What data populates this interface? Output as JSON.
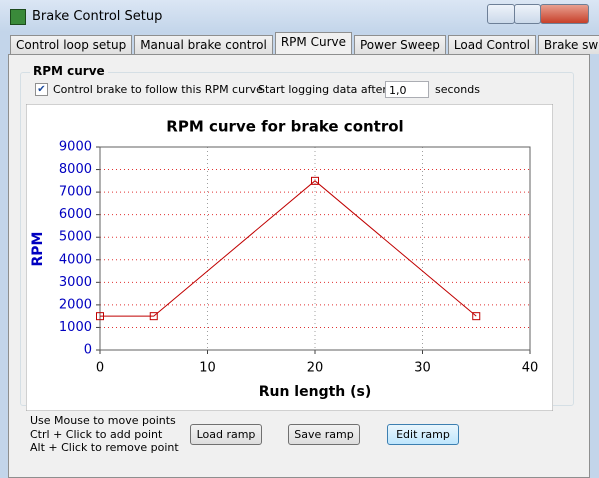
{
  "window": {
    "title": "Brake Control Setup"
  },
  "tabs": [
    "Control loop setup",
    "Manual brake control",
    "RPM Curve",
    "Power Sweep",
    "Load Control",
    "Brake sweep"
  ],
  "group": {
    "title": "RPM curve",
    "checkbox_label": "Control brake to follow this RPM curve",
    "checked": true,
    "logging_label": "Start logging data after:",
    "logging_value": "1,0",
    "logging_unit": "seconds"
  },
  "chart_data": {
    "type": "line",
    "title": "RPM curve for brake control",
    "x_label": "Run length (s)",
    "y_label": "RPM",
    "x": [
      0,
      5,
      20,
      35
    ],
    "values": [
      1500,
      1500,
      7500,
      1500
    ],
    "color": "#c00000",
    "xlim": [
      0,
      40
    ],
    "ylim": [
      0,
      9000
    ],
    "xticks": [
      0,
      10,
      20,
      30,
      40
    ],
    "yticks": [
      0,
      1000,
      2000,
      3000,
      4000,
      5000,
      6000,
      7000,
      8000,
      9000
    ],
    "grid": true
  },
  "help": [
    "Use Mouse to move points",
    "Ctrl + Click to add point",
    "Alt + Click to remove point"
  ],
  "buttons": [
    "Load ramp",
    "Save ramp",
    "Edit ramp"
  ]
}
